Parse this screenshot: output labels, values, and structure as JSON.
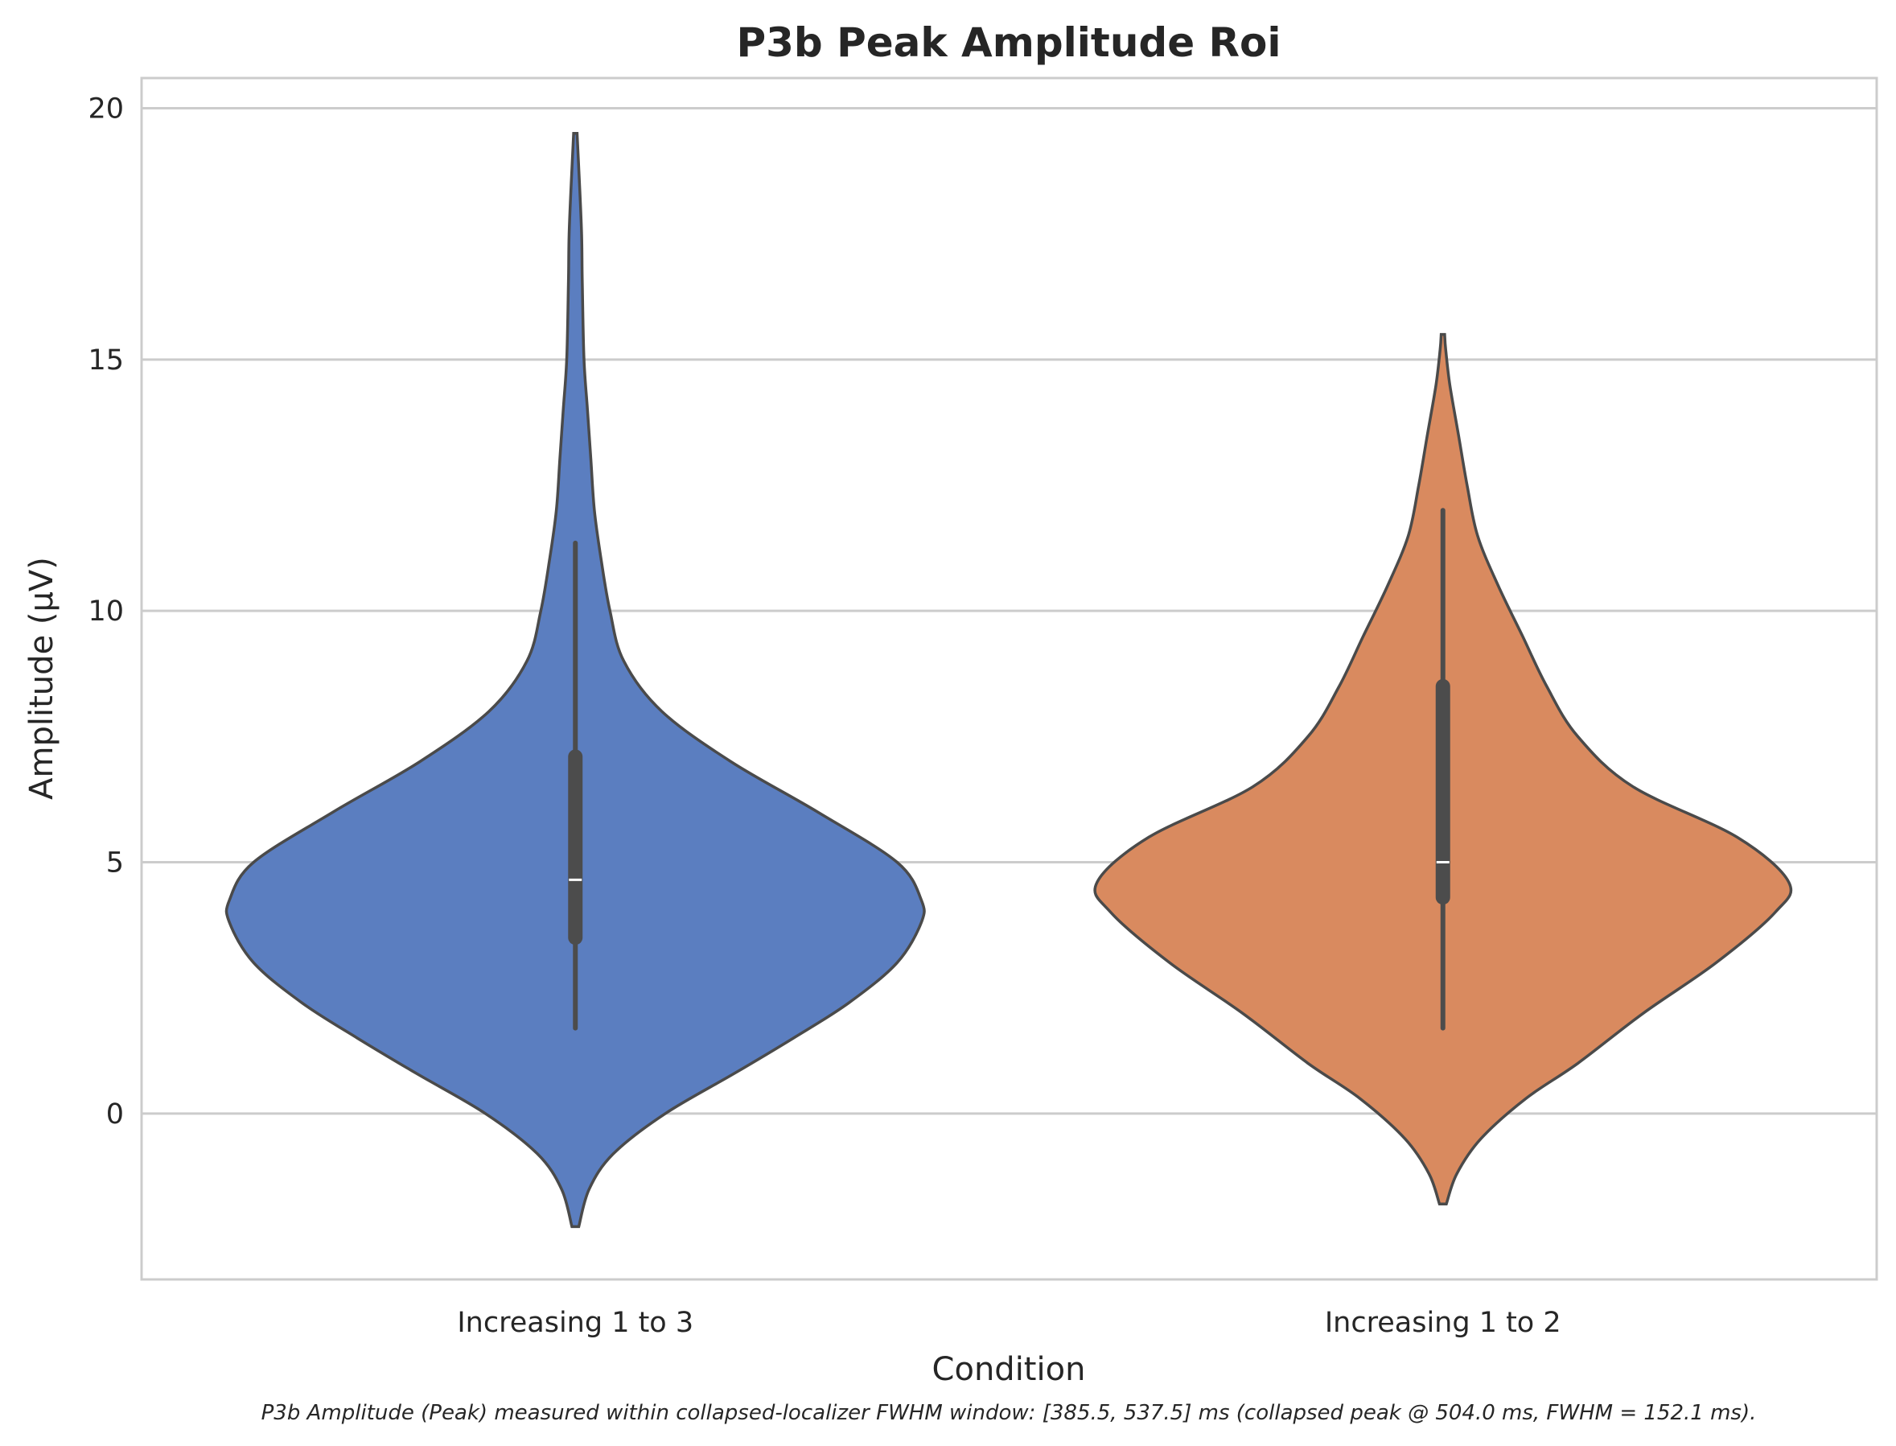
{
  "chart_data": {
    "type": "violin",
    "title": "P3b Peak Amplitude Roi",
    "xlabel": "Condition",
    "ylabel": "Amplitude (µV)",
    "caption": "P3b Amplitude (Peak) measured within collapsed-localizer FWHM window: [385.5, 537.5] ms (collapsed peak @ 504.0 ms, FWHM = 152.1 ms).",
    "ylim": [
      -3.3,
      20.6
    ],
    "yticks": [
      0,
      5,
      10,
      15,
      20
    ],
    "grid": "horizontal",
    "categories": [
      "Increasing 1 to 3",
      "Increasing 1 to 2"
    ],
    "series": [
      {
        "category": "Increasing 1 to 3",
        "color": "#5b7ec0",
        "min": -2.25,
        "max": 19.5,
        "median": 4.65,
        "q1": 3.5,
        "q3": 7.1,
        "whisker_low": 1.7,
        "whisker_high": 11.35,
        "density_profile": [
          [
            -2.25,
            0.01
          ],
          [
            -1.5,
            0.04
          ],
          [
            -0.8,
            0.11
          ],
          [
            0.0,
            0.26
          ],
          [
            0.8,
            0.46
          ],
          [
            1.5,
            0.63
          ],
          [
            2.2,
            0.79
          ],
          [
            3.0,
            0.93
          ],
          [
            3.8,
            1.0
          ],
          [
            4.25,
            1.0
          ],
          [
            5.0,
            0.93
          ],
          [
            6.0,
            0.7
          ],
          [
            7.0,
            0.45
          ],
          [
            8.0,
            0.25
          ],
          [
            9.0,
            0.14
          ],
          [
            10.0,
            0.1
          ],
          [
            11.0,
            0.075
          ],
          [
            12.0,
            0.055
          ],
          [
            13.0,
            0.045
          ],
          [
            14.0,
            0.035
          ],
          [
            15.0,
            0.025
          ],
          [
            16.5,
            0.02
          ],
          [
            17.5,
            0.018
          ],
          [
            18.8,
            0.01
          ],
          [
            19.5,
            0.005
          ]
        ]
      },
      {
        "category": "Increasing 1 to 2",
        "color": "#d98a5f",
        "min": -1.8,
        "max": 15.5,
        "median": 5.0,
        "q1": 4.3,
        "q3": 8.5,
        "whisker_low": 1.7,
        "whisker_high": 12.0,
        "density_profile": [
          [
            -1.8,
            0.01
          ],
          [
            -1.2,
            0.04
          ],
          [
            -0.5,
            0.11
          ],
          [
            0.3,
            0.24
          ],
          [
            1.0,
            0.39
          ],
          [
            2.0,
            0.58
          ],
          [
            3.0,
            0.79
          ],
          [
            4.0,
            0.96
          ],
          [
            4.6,
            1.0
          ],
          [
            5.5,
            0.85
          ],
          [
            6.5,
            0.55
          ],
          [
            7.5,
            0.39
          ],
          [
            8.5,
            0.3
          ],
          [
            9.5,
            0.23
          ],
          [
            10.5,
            0.16
          ],
          [
            11.5,
            0.1
          ],
          [
            12.5,
            0.07
          ],
          [
            13.5,
            0.045
          ],
          [
            14.5,
            0.02
          ],
          [
            15.2,
            0.008
          ],
          [
            15.5,
            0.005
          ]
        ]
      }
    ]
  }
}
